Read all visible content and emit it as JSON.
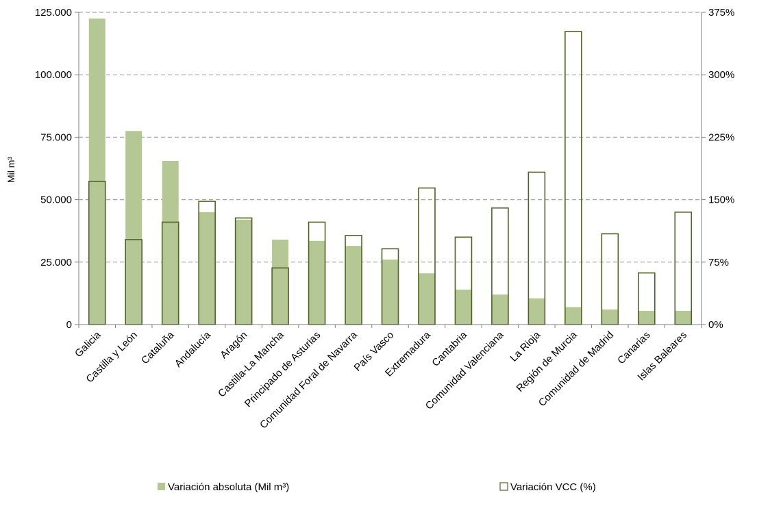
{
  "chart_data": {
    "type": "bar",
    "categories": [
      "Galicia",
      "Castilla y León",
      "Cataluña",
      "Andalucía",
      "Aragón",
      "Castilla-La Mancha",
      "Principado de Asturias",
      "Comunidad Foral de Navarra",
      "País Vasco",
      "Extremadura",
      "Cantabria",
      "Comunidad Valenciana",
      "La Rioja",
      "Región de Murcia",
      "Comunidad de Madrid",
      "Canarias",
      "Islas Baleares"
    ],
    "series": [
      {
        "name": "Variación absoluta (Mil m³)",
        "axis": "left",
        "style": "filled",
        "values": [
          122500,
          77500,
          65500,
          45000,
          42000,
          34000,
          33500,
          31500,
          26000,
          20500,
          14000,
          12000,
          10500,
          7000,
          6000,
          5500,
          5500
        ]
      },
      {
        "name": "Variación VCC (%)",
        "axis": "right",
        "style": "outline",
        "values": [
          172,
          102,
          123,
          148,
          128,
          68,
          123,
          107,
          91,
          164,
          105,
          140,
          183,
          352,
          109,
          62,
          135
        ]
      }
    ],
    "ylabel": "Mil m³",
    "ylim": [
      0,
      125000
    ],
    "y_ticks": [
      "0",
      "25.000",
      "50.000",
      "75.000",
      "100.000",
      "125.000"
    ],
    "y2lim": [
      0,
      375
    ],
    "y2_ticks": [
      "0%",
      "75%",
      "150%",
      "225%",
      "300%",
      "375%"
    ],
    "grid": true,
    "legend_position": "bottom",
    "colors": {
      "fill": "#b5c794",
      "outline": "#4f6228",
      "grid": "#a6a6a6",
      "axis": "#7f7f7f"
    }
  }
}
